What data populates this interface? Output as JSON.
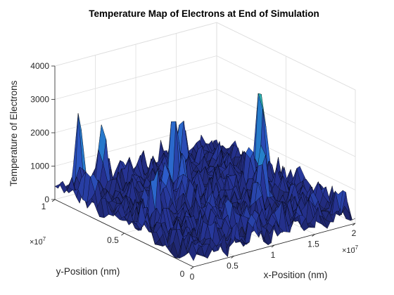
{
  "chart_data": {
    "type": "surface",
    "title": "Temperature Map of Electrons at End of Simulation",
    "xlabel": "x-Position (nm)",
    "ylabel": "y-Position (nm)",
    "zlabel": "Temperature of Electrons",
    "x_exponent": {
      "base": "×10",
      "power": "-7"
    },
    "y_exponent": {
      "base": "×10",
      "power": "-7"
    },
    "xlim": [
      0,
      2
    ],
    "ylim": [
      0,
      1
    ],
    "zlim": [
      0,
      4000
    ],
    "x_ticks": [
      0,
      0.5,
      1,
      1.5,
      2
    ],
    "y_ticks": [
      0,
      0.5,
      1
    ],
    "z_ticks": [
      0,
      1000,
      2000,
      3000,
      4000
    ],
    "x_tick_labels": [
      "0",
      "0.5",
      "1",
      "1.5",
      "2"
    ],
    "y_tick_labels": [
      "0",
      "0.5",
      "1"
    ],
    "z_tick_labels": [
      "0",
      "1000",
      "2000",
      "3000",
      "4000"
    ],
    "grid": true,
    "colormap": "parula",
    "colors": {
      "low": "#1a1e56",
      "mid": "#2f5fc0",
      "high": "#f5e63a"
    },
    "peaks": [
      {
        "x": 0.05,
        "y": 0.78,
        "z": 1400
      },
      {
        "x": 0.25,
        "y": 0.97,
        "z": 2650
      },
      {
        "x": 0.45,
        "y": 0.92,
        "z": 2850
      },
      {
        "x": 0.6,
        "y": 0.55,
        "z": 1700
      },
      {
        "x": 0.9,
        "y": 0.6,
        "z": 2050
      },
      {
        "x": 1.05,
        "y": 0.75,
        "z": 3050
      },
      {
        "x": 1.3,
        "y": 0.85,
        "z": 2400
      },
      {
        "x": 1.45,
        "y": 0.35,
        "z": 2200
      },
      {
        "x": 1.65,
        "y": 0.55,
        "z": 1950
      },
      {
        "x": 1.9,
        "y": 0.62,
        "z": 3550
      },
      {
        "x": 0.75,
        "y": 0.2,
        "z": 1300
      },
      {
        "x": 1.2,
        "y": 0.25,
        "z": 1600
      },
      {
        "x": 0.3,
        "y": 0.45,
        "z": 1500
      }
    ]
  }
}
